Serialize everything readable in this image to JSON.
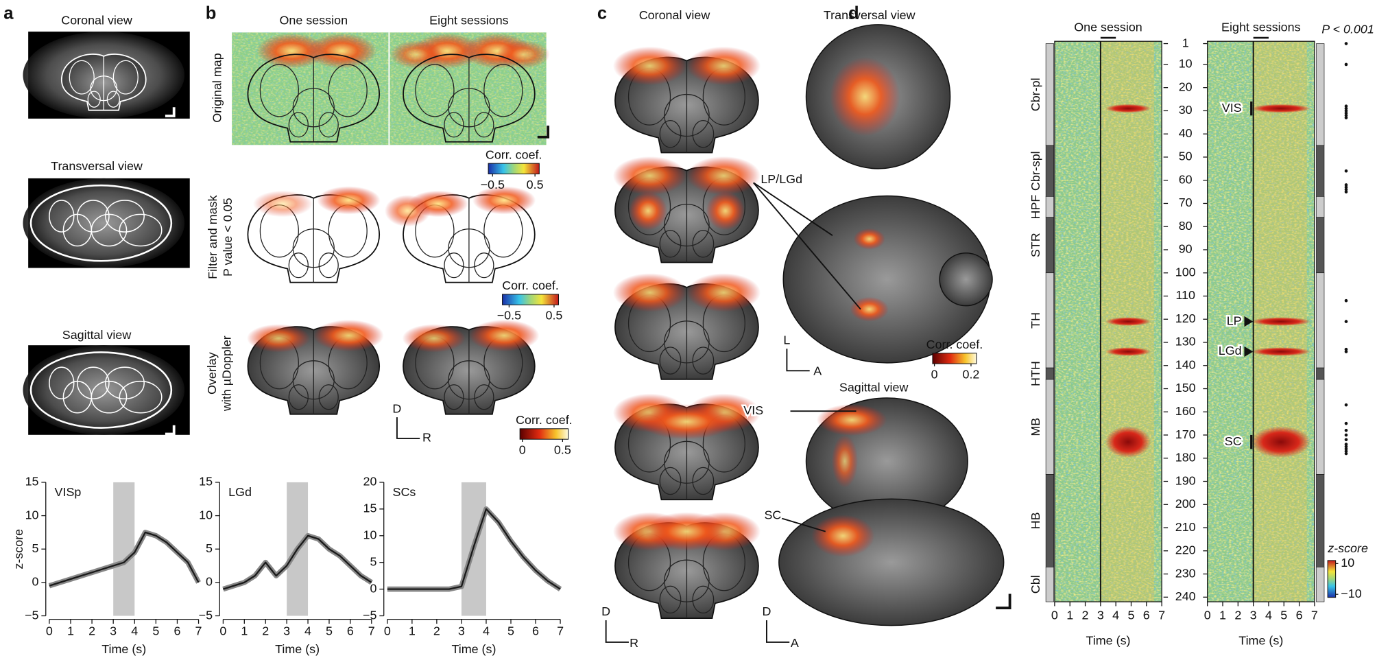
{
  "panel_a": {
    "label": "a",
    "views": [
      "Coronal view",
      "Transversal view",
      "Sagittal view"
    ]
  },
  "chart_data": [
    {
      "type": "line",
      "title": "VISp",
      "xlabel": "Time (s)",
      "ylabel": "z-score",
      "x": [
        0,
        0.5,
        1,
        1.5,
        2,
        2.5,
        3,
        3.5,
        4,
        4.5,
        5,
        5.5,
        6,
        6.5,
        7
      ],
      "values": [
        -0.5,
        0,
        0.5,
        1,
        1.5,
        2,
        2.5,
        3,
        4.5,
        7.5,
        7,
        6,
        4.5,
        3,
        0
      ],
      "color": "#1a1a1a",
      "shade": [
        3,
        4
      ],
      "xlim": [
        0,
        7
      ],
      "xticks": [
        0,
        1,
        2,
        3,
        4,
        5,
        6,
        7
      ],
      "ylim": [
        -5,
        15
      ],
      "yticks": [
        {
          "value": -5,
          "label": "−5"
        },
        0,
        5,
        10,
        15
      ]
    },
    {
      "type": "line",
      "title": "LGd",
      "xlabel": "Time (s)",
      "x": [
        0,
        0.5,
        1,
        1.5,
        2,
        2.5,
        3,
        3.5,
        4,
        4.5,
        5,
        5.5,
        6,
        6.5,
        7
      ],
      "values": [
        -1,
        -0.5,
        0,
        1,
        3,
        1,
        2.5,
        5,
        7,
        6.5,
        5,
        4,
        2.5,
        1,
        0
      ],
      "color": "#1a1a1a",
      "shade": [
        3,
        4
      ],
      "xlim": [
        0,
        7
      ],
      "xticks": [
        0,
        1,
        2,
        3,
        4,
        5,
        6,
        7
      ],
      "ylim": [
        -5,
        15
      ],
      "yticks": [
        {
          "value": -5,
          "label": "−5"
        },
        0,
        5,
        10,
        15
      ]
    },
    {
      "type": "line",
      "title": "SCs",
      "xlabel": "Time (s)",
      "x": [
        0,
        0.5,
        1,
        1.5,
        2,
        2.5,
        3,
        3.5,
        4,
        4.5,
        5,
        5.5,
        6,
        6.5,
        7
      ],
      "values": [
        0,
        0,
        0,
        0,
        0,
        0,
        0.5,
        8,
        15,
        12.5,
        9,
        6,
        3.5,
        1.5,
        0
      ],
      "color": "#1a1a1a",
      "shade": [
        3,
        4
      ],
      "xlim": [
        0,
        7
      ],
      "xticks": [
        0,
        1,
        2,
        3,
        4,
        5,
        6,
        7
      ],
      "ylim": [
        -5,
        20
      ],
      "yticks": [
        {
          "value": -5,
          "label": "−5"
        },
        0,
        5,
        10,
        15,
        20
      ]
    }
  ],
  "panel_b": {
    "label": "b",
    "columns": [
      "One session",
      "Eight sessions"
    ],
    "rows": [
      [
        "Original map"
      ],
      [
        "Filter and mask",
        "P value < 0.05"
      ],
      [
        "Overlay",
        "with µDoppler"
      ]
    ],
    "colorbars": [
      {
        "title": "Corr. coef.",
        "lim": [
          -0.6,
          0.6
        ],
        "ticks": [
          {
            "value": -0.5,
            "label": "−0.5"
          },
          0.5
        ]
      },
      {
        "title": "Corr. coef.",
        "lim": [
          -0.65,
          0.6
        ],
        "ticks": [
          {
            "value": -0.5,
            "label": "−0.5"
          },
          0.5
        ]
      },
      {
        "title": "Corr. coef.",
        "lim": [
          -0.03,
          0.57
        ],
        "ticks": [
          0,
          0.5
        ]
      }
    ],
    "orientation": [
      "D",
      "R"
    ]
  },
  "panel_c": {
    "label": "c",
    "titles": [
      "Coronal view",
      "Transversal view",
      "Sagittal view"
    ],
    "annotations": [
      "LP/LGd",
      "VIS",
      "SC"
    ],
    "colorbar": {
      "title": "Corr. coef.",
      "lim": [
        -0.01,
        0.23
      ],
      "ticks": [
        0,
        0.2
      ]
    },
    "orientations": [
      [
        "L",
        "A"
      ],
      [
        "D",
        "R"
      ],
      [
        "D",
        "A"
      ]
    ]
  },
  "panel_d": {
    "label": "d",
    "columns": [
      "One session",
      "Eight sessions"
    ],
    "significance": "P < 0.001",
    "xlabel": "Time (s)",
    "xlim": [
      0,
      7
    ],
    "xticks": [
      0,
      1,
      2,
      3,
      4,
      5,
      6,
      7
    ],
    "ylim": [
      0,
      242
    ],
    "yticks": [
      1,
      10,
      20,
      30,
      40,
      50,
      60,
      70,
      80,
      90,
      100,
      110,
      120,
      130,
      140,
      150,
      160,
      170,
      180,
      190,
      200,
      210,
      220,
      230,
      240
    ],
    "stimulus": [
      3,
      4
    ],
    "regions": [
      {
        "name": "Cbr-pl",
        "rows": [
          1,
          45
        ]
      },
      {
        "name": "Cbr-spl",
        "rows": [
          45,
          67
        ]
      },
      {
        "name": "HPF",
        "rows": [
          67,
          76
        ]
      },
      {
        "name": "STR",
        "rows": [
          76,
          100
        ]
      },
      {
        "name": "TH",
        "rows": [
          100,
          141
        ]
      },
      {
        "name": "HTH",
        "rows": [
          141,
          146
        ]
      },
      {
        "name": "MB",
        "rows": [
          146,
          187
        ]
      },
      {
        "name": "HB",
        "rows": [
          187,
          227
        ]
      },
      {
        "name": "Cbl",
        "rows": [
          227,
          242
        ]
      }
    ],
    "annotations": [
      {
        "label": "VIS",
        "row": 29
      },
      {
        "label": "LP",
        "row": 121
      },
      {
        "label": "LGd",
        "row": 134
      },
      {
        "label": "SC",
        "row": 173
      }
    ],
    "significant_rows": [
      1,
      10,
      28,
      29,
      30,
      31,
      32,
      33,
      56,
      62,
      63,
      64,
      65,
      112,
      121,
      133,
      134,
      157,
      165,
      168,
      170,
      172,
      174,
      175,
      176,
      177,
      178
    ],
    "colorbar": {
      "title": "z-score",
      "lim": [
        -12,
        12
      ],
      "ticks": [
        10,
        {
          "value": -10,
          "label": "−10"
        }
      ]
    }
  }
}
